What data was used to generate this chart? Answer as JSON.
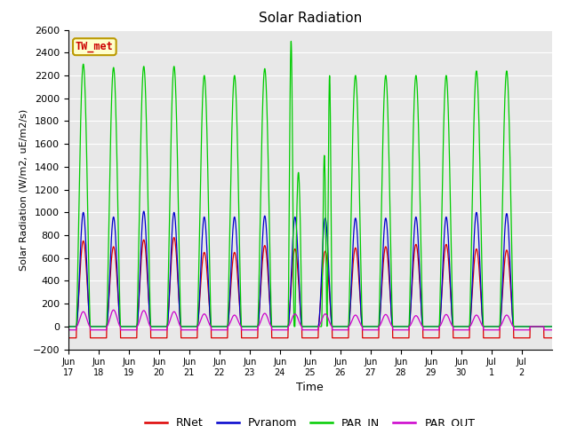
{
  "title": "Solar Radiation",
  "ylabel": "Solar Radiation (W/m2, uE/m2/s)",
  "xlabel": "Time",
  "ylim": [
    -200,
    2600
  ],
  "yticks": [
    -200,
    0,
    200,
    400,
    600,
    800,
    1000,
    1200,
    1400,
    1600,
    1800,
    2000,
    2200,
    2400,
    2600
  ],
  "label_text": "TW_met",
  "label_color": "#cc0000",
  "label_bg": "#ffffcc",
  "label_border": "#bb9900",
  "colors": {
    "RNet": "#dd0000",
    "Pyranom": "#0000cc",
    "PAR_IN": "#00cc00",
    "PAR_OUT": "#cc00cc"
  },
  "background_color": "#e8e8e8",
  "grid_color": "#ffffff",
  "x_tick_labels": [
    "Jun 17",
    "Jun 18",
    "Jun 19",
    "Jun 20",
    "Jun 21",
    "Jun 22",
    "Jun 23",
    "Jun 24",
    "Jun 25",
    "Jun 26",
    "Jun 27",
    "Jun 28",
    "Jun 29",
    "Jun 30",
    "Jul 1",
    "Jul 2"
  ],
  "par_in_peaks": [
    2300,
    2270,
    2280,
    2280,
    2200,
    2200,
    2260,
    2500,
    2200,
    2200,
    2200,
    2200,
    2200,
    2240,
    2240,
    0
  ],
  "pyranom_peaks": [
    1000,
    960,
    1010,
    1000,
    960,
    960,
    970,
    960,
    950,
    950,
    950,
    960,
    960,
    1000,
    990,
    0
  ],
  "rnet_peaks": [
    750,
    700,
    760,
    780,
    650,
    650,
    710,
    680,
    660,
    690,
    700,
    720,
    720,
    680,
    670,
    0
  ],
  "par_out_peaks": [
    130,
    145,
    140,
    130,
    110,
    100,
    115,
    110,
    110,
    100,
    105,
    95,
    105,
    100,
    100,
    0
  ],
  "rnet_night": -100,
  "par_out_night": -30
}
